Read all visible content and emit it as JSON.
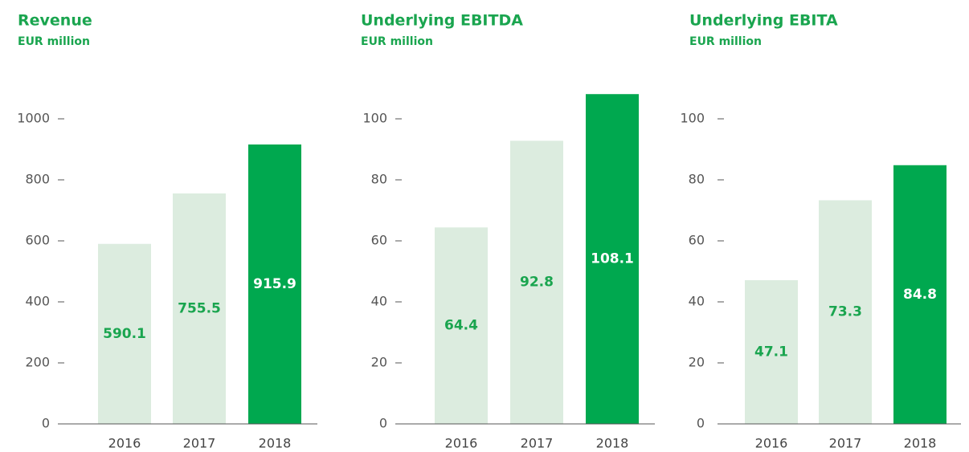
{
  "chart_data": [
    {
      "type": "bar",
      "title": "Revenue",
      "subtitle": "EUR million",
      "categories": [
        "2016",
        "2017",
        "2018"
      ],
      "values": [
        590.1,
        755.5,
        915.9
      ],
      "colors": [
        "#dcecdf",
        "#dcecdf",
        "#00a84f"
      ],
      "ylim": [
        0,
        1000
      ],
      "yticks": [
        0,
        200,
        400,
        600,
        800,
        1000
      ]
    },
    {
      "type": "bar",
      "title": "Underlying EBITDA",
      "subtitle": "EUR million",
      "categories": [
        "2016",
        "2017",
        "2018"
      ],
      "values": [
        64.4,
        92.8,
        108.1
      ],
      "colors": [
        "#dcecdf",
        "#dcecdf",
        "#00a84f"
      ],
      "ylim": [
        0,
        100
      ],
      "yticks": [
        0,
        20,
        40,
        60,
        80,
        100
      ]
    },
    {
      "type": "bar",
      "title": "Underlying EBITA",
      "subtitle": "EUR million",
      "categories": [
        "2016",
        "2017",
        "2018"
      ],
      "values": [
        47.1,
        73.3,
        84.8
      ],
      "colors": [
        "#dcecdf",
        "#dcecdf",
        "#00a84f"
      ],
      "ylim": [
        0,
        100
      ],
      "yticks": [
        0,
        20,
        40,
        60,
        80,
        100
      ]
    }
  ]
}
